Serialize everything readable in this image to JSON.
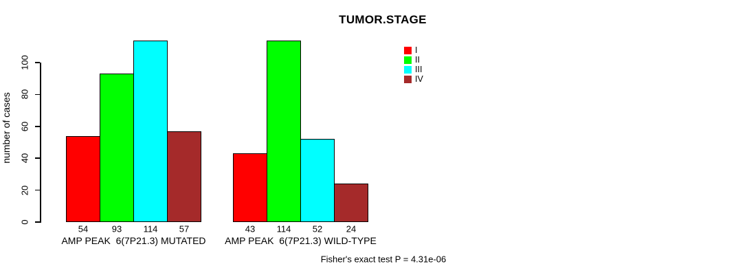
{
  "chart_data": {
    "type": "bar",
    "title": "TUMOR.STAGE",
    "ylabel": "number of cases",
    "xlabel": "",
    "categories": [
      "AMP PEAK  6(7P21.3) MUTATED",
      "AMP PEAK  6(7P21.3) WILD-TYPE"
    ],
    "series": [
      {
        "name": "I",
        "color": "#FF0000",
        "values": [
          54,
          43
        ]
      },
      {
        "name": "II",
        "color": "#00FF00",
        "values": [
          93,
          114
        ]
      },
      {
        "name": "III",
        "color": "#00FFFF",
        "values": [
          114,
          52
        ]
      },
      {
        "name": "IV",
        "color": "#A52A2A",
        "values": [
          57,
          24
        ]
      }
    ],
    "yticks": [
      0,
      20,
      40,
      60,
      80,
      100
    ],
    "ylim": [
      0,
      114
    ],
    "grid": false,
    "bar_value_labels_shown": true,
    "legend": {
      "position": "right",
      "entries": [
        {
          "label": "I",
          "color": "#FF0000"
        },
        {
          "label": "II",
          "color": "#00FF00"
        },
        {
          "label": "III",
          "color": "#00FFFF"
        },
        {
          "label": "IV",
          "color": "#A52A2A"
        }
      ]
    },
    "annotation": "Fisher's exact test P = 4.31e-06",
    "axis_color": "#000000",
    "background_color": "#FFFFFF"
  }
}
